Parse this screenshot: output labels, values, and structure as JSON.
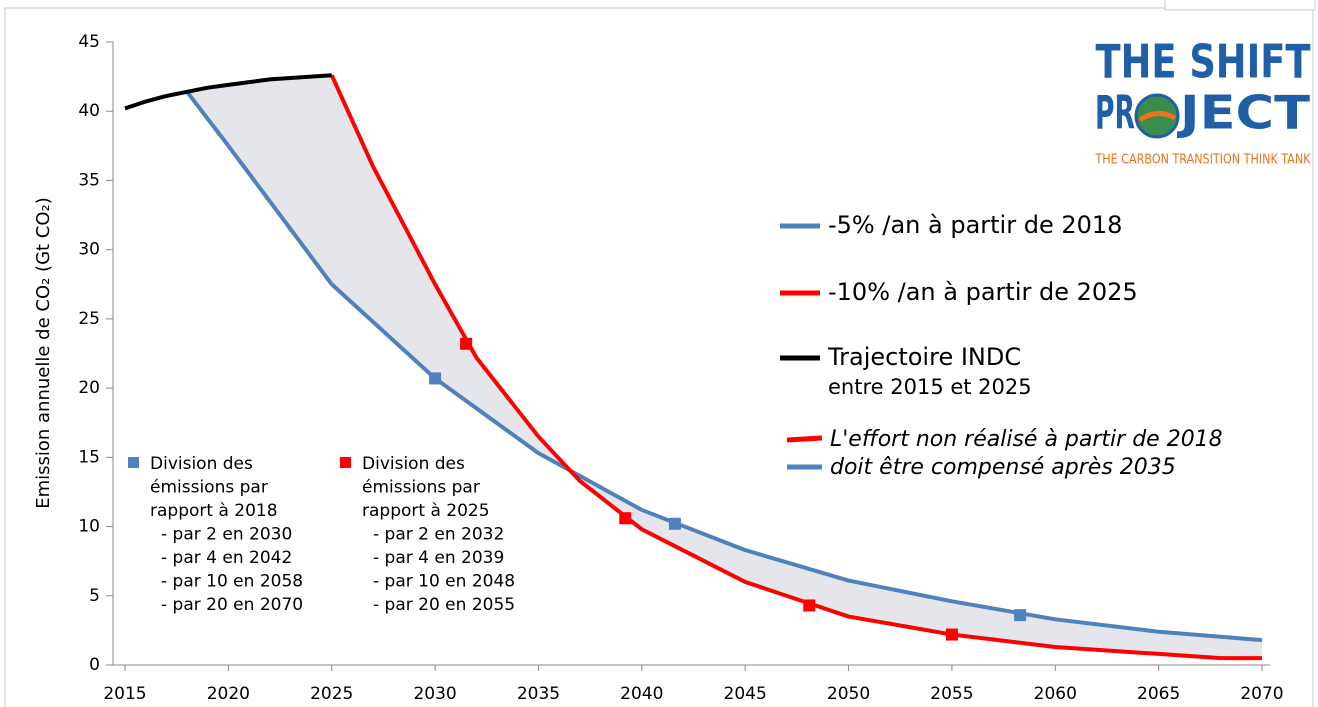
{
  "chart_data": {
    "type": "line",
    "ylabel": "Emission annuelle de CO₂ (Gt CO₂)",
    "xlim": [
      2015,
      2070
    ],
    "xticks": [
      2015,
      2020,
      2025,
      2030,
      2035,
      2040,
      2045,
      2050,
      2055,
      2060,
      2065,
      2070
    ],
    "ylim": [
      0,
      45
    ],
    "yticks": [
      0,
      5,
      10,
      15,
      20,
      25,
      30,
      35,
      40,
      45
    ],
    "series": [
      {
        "name": "-5% /an à partir de 2018",
        "color": "#4f81bd",
        "x": [
          2018,
          2020,
          2025,
          2030,
          2035,
          2040,
          2045,
          2050,
          2055,
          2060,
          2065,
          2070
        ],
        "values": [
          41.4,
          37.5,
          27.5,
          20.7,
          15.3,
          11.2,
          8.3,
          6.1,
          4.6,
          3.3,
          2.4,
          1.8
        ],
        "points_x": [
          2030,
          2041.6,
          2058.3
        ],
        "points": [
          20.7,
          10.2,
          3.6
        ]
      },
      {
        "name": "-10% /an à partir de 2025",
        "color": "#ff0000",
        "x": [
          2025,
          2027,
          2030,
          2032,
          2035,
          2037,
          2040,
          2045,
          2050,
          2055,
          2060,
          2065,
          2068,
          2070
        ],
        "values": [
          42.6,
          36.0,
          27.5,
          22.2,
          16.5,
          13.3,
          9.8,
          6.0,
          3.5,
          2.2,
          1.3,
          0.8,
          0.5,
          0.5
        ],
        "points_x": [
          2031.5,
          2039.2,
          2048.1,
          2055
        ],
        "points": [
          23.2,
          10.6,
          4.3,
          2.2
        ]
      },
      {
        "name": "Trajectoire INDC",
        "subtitle": "entre 2015 et 2025",
        "color": "#000000",
        "x": [
          2015,
          2016,
          2017,
          2018,
          2019,
          2020,
          2021,
          2022,
          2023,
          2024,
          2025
        ],
        "values": [
          40.2,
          40.7,
          41.1,
          41.4,
          41.7,
          41.9,
          42.1,
          42.3,
          42.4,
          42.5,
          42.6
        ]
      }
    ],
    "area_note": [
      "L'effort non réalisé à partir de 2018",
      "doit être compensé après 2035"
    ],
    "notes": [
      {
        "color": "#4f81bd",
        "lines": [
          "Division des",
          "émissions par",
          "rapport à 2018",
          "- par 2 en 2030",
          "- par 4 en 2042",
          "- par 10 en 2058",
          "- par 20 en 2070"
        ]
      },
      {
        "color": "#ff0000",
        "lines": [
          "Division des",
          "émissions par",
          "rapport à 2025",
          "- par 2 en 2032",
          "- par 4 en 2039",
          "- par 10 en 2048",
          "- par 20 en 2055"
        ]
      }
    ],
    "logo": {
      "line1": "THE SHIFT",
      "line2a": "PR",
      "line2b": "JECT",
      "tagline": "THE CARBON TRANSITION THINK TANK"
    }
  }
}
